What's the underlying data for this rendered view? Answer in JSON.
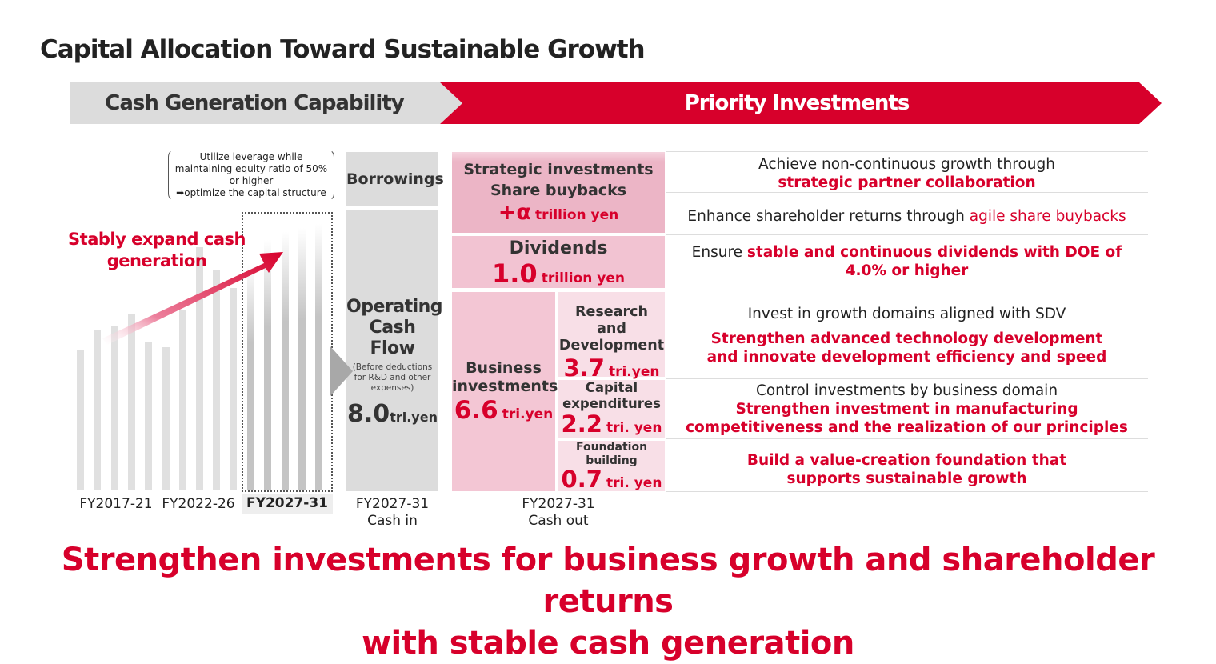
{
  "title": "Capital Allocation Toward Sustainable Growth",
  "bands": {
    "left": "Cash Generation Capability",
    "right": "Priority Investments"
  },
  "colors": {
    "accent": "#d7002b",
    "grey": "#dcdcdc",
    "pink_dark": "#ecb5c6",
    "pink_mid": "#f3c6d4",
    "pink_light": "#f8dfe7"
  },
  "note": {
    "line1": "Utilize leverage while",
    "line2": "maintaining equity ratio of 50%",
    "line3": "or higher",
    "line4": "➡optimize the capital structure"
  },
  "expand_label": "Stably expand cash generation",
  "periods": [
    "FY2017-21",
    "FY2022-26",
    "FY2027-31"
  ],
  "cash_in": {
    "borrowings": "Borrowings",
    "ocf_title": "Operating Cash Flow",
    "ocf_note": "(Before deductions for R&D and other expenses)",
    "ocf_value": "8.0",
    "ocf_unit": "tri.yen",
    "label1": "FY2027-31",
    "label2": "Cash in"
  },
  "cash_out": {
    "strategic": {
      "line1": "Strategic investments",
      "line2": "Share buybacks",
      "value": "+α",
      "unit": "trillion yen"
    },
    "dividends": {
      "label": "Dividends",
      "value": "1.0",
      "unit": "trillion yen"
    },
    "business": {
      "label": "Business investments",
      "value": "6.6",
      "unit": "tri.yen"
    },
    "rnd": {
      "label": "Research and Development",
      "value": "3.7",
      "unit": "tri.yen"
    },
    "capex": {
      "label": "Capital expenditures",
      "value": "2.2",
      "unit": "tri. yen"
    },
    "foundation": {
      "label": "Foundation building",
      "value": "0.7",
      "unit": "tri. yen"
    },
    "label1": "FY2027-31",
    "label2": "Cash out"
  },
  "descriptions": {
    "strategic_a": "Achieve non-continuous growth through",
    "strategic_b": "strategic partner collaboration",
    "buyback_a": "Enhance shareholder returns through ",
    "buyback_b": "agile share buybacks",
    "div_a": "Ensure ",
    "div_b": "stable and continuous dividends with DOE of 4.0% or higher",
    "rnd_a": "Invest in growth domains aligned with SDV",
    "rnd_b": "Strengthen advanced technology development and innovate development efficiency and speed",
    "capex_a": "Control investments by business domain",
    "capex_b": "Strengthen investment in manufacturing competitiveness and the realization of our principles",
    "found_b": "Build a value-creation foundation that supports sustainable growth"
  },
  "bottom": {
    "line1": "Strengthen investments for business growth and shareholder returns",
    "line2": "with stable cash generation"
  }
}
